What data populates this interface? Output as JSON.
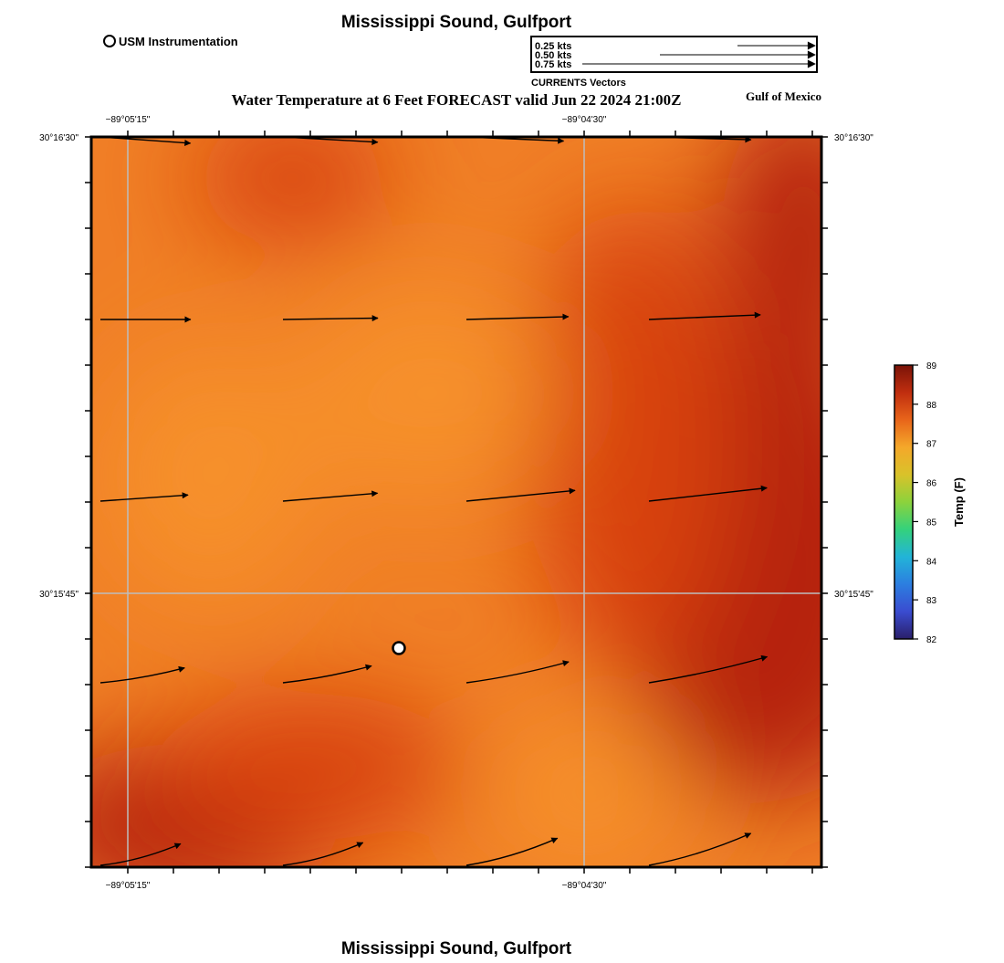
{
  "header": {
    "title": "Mississippi Sound, Gulfport",
    "subtitle": "Water Temperature at 6 Feet FORECAST valid Jun 22 2024 21:00Z",
    "region_label": "Gulf of Mexico",
    "station_legend_label": "USM Instrumentation"
  },
  "footer": {
    "title": "Mississippi Sound, Gulfport"
  },
  "vector_legend": {
    "caption": "CURRENTS Vectors",
    "entries": [
      {
        "label": "0.25 kts",
        "speed_kts": 0.25
      },
      {
        "label": "0.50 kts",
        "speed_kts": 0.5
      },
      {
        "label": "0.75 kts",
        "speed_kts": 0.75
      }
    ]
  },
  "axes": {
    "lon_ticks": [
      "−89°05'15\"",
      "−89°04'30\""
    ],
    "lat_ticks": [
      "30°16'30\"",
      "30°15'45\""
    ]
  },
  "colorbar": {
    "title": "Temp (F)",
    "ticks": [
      "89",
      "88",
      "87",
      "86",
      "85",
      "84",
      "83",
      "82"
    ],
    "stops": [
      "#7a1308",
      "#c02e0f",
      "#e8651a",
      "#f4a82a",
      "#d9c22a",
      "#8cd23c",
      "#34d27c",
      "#22b4d8",
      "#2c7ee0",
      "#3a4cd0",
      "#2a1f6a"
    ]
  },
  "map": {
    "field_colors": {
      "base": "#f07f26",
      "hot": "#b52409",
      "warm": "#d8420f",
      "cool": "#f6902c"
    }
  },
  "chart_data": {
    "type": "heatmap",
    "variable": "Temp (F)",
    "value_range": [
      82,
      89
    ],
    "current_vectors_kts": [
      [
        0.38,
        0.4,
        0.41,
        0.43
      ],
      [
        0.38,
        0.4,
        0.43,
        0.47
      ],
      [
        0.37,
        0.4,
        0.46,
        0.5
      ],
      [
        0.36,
        0.38,
        0.44,
        0.51
      ],
      [
        0.35,
        0.35,
        0.4,
        0.45
      ]
    ]
  }
}
